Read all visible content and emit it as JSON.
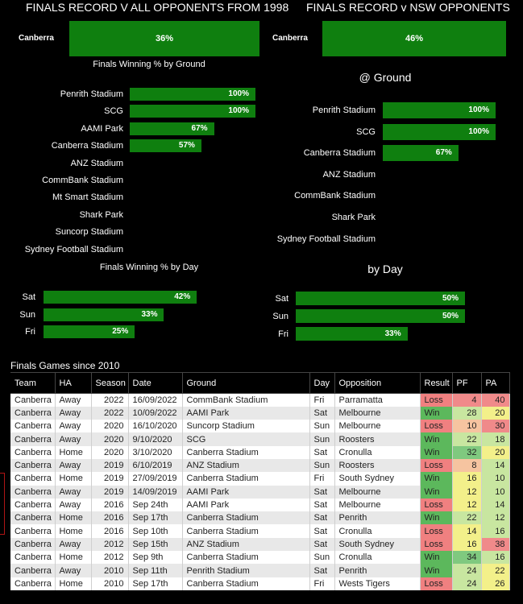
{
  "chart_data": [
    {
      "type": "bar",
      "title": "FINALS RECORD V ALL OPPONENTS FROM 1998",
      "categories": [
        "Canberra"
      ],
      "values": [
        36
      ],
      "value_format": "percent"
    },
    {
      "type": "bar",
      "title": "FINALS RECORD v NSW OPPONENTS",
      "categories": [
        "Canberra"
      ],
      "values": [
        46
      ],
      "value_format": "percent"
    },
    {
      "type": "bar",
      "orientation": "horizontal",
      "title": "Finals Winning % by Ground",
      "categories": [
        "Penrith Stadium",
        "SCG",
        "AAMI Park",
        "Canberra Stadium",
        "ANZ Stadium",
        "CommBank Stadium",
        "Mt Smart Stadium",
        "Shark Park",
        "Suncorp Stadium",
        "Sydney Football Stadium"
      ],
      "values": [
        100,
        100,
        67,
        57,
        0,
        0,
        0,
        0,
        0,
        0
      ],
      "xlim": [
        0,
        100
      ]
    },
    {
      "type": "bar",
      "orientation": "horizontal",
      "title": "@ Ground",
      "categories": [
        "Penrith Stadium",
        "SCG",
        "Canberra Stadium",
        "ANZ Stadium",
        "CommBank Stadium",
        "Shark Park",
        "Sydney Football Stadium"
      ],
      "values": [
        100,
        100,
        67,
        0,
        0,
        0,
        0
      ],
      "xlim": [
        0,
        100
      ]
    },
    {
      "type": "bar",
      "orientation": "horizontal",
      "title": "Finals Winning % by Day",
      "categories": [
        "Sat",
        "Sun",
        "Fri"
      ],
      "values": [
        42,
        33,
        25
      ],
      "xlim": [
        0,
        100
      ]
    },
    {
      "type": "bar",
      "orientation": "horizontal",
      "title": "by Day",
      "categories": [
        "Sat",
        "Sun",
        "Fri"
      ],
      "values": [
        50,
        50,
        33
      ],
      "xlim": [
        0,
        100
      ]
    },
    {
      "type": "table",
      "title": "Finals Games since 2010",
      "columns": [
        "Team",
        "HA",
        "Season",
        "Date",
        "Ground",
        "Day",
        "Opposition",
        "Result",
        "PF",
        "PA"
      ],
      "rows": [
        [
          "Canberra",
          "Away",
          "2022",
          "16/09/2022",
          "CommBank Stadium",
          "Fri",
          "Parramatta",
          "Loss",
          "4",
          "40"
        ],
        [
          "Canberra",
          "Away",
          "2022",
          "10/09/2022",
          "AAMI Park",
          "Sat",
          "Melbourne",
          "Win",
          "28",
          "20"
        ],
        [
          "Canberra",
          "Away",
          "2020",
          "16/10/2020",
          "Suncorp Stadium",
          "Sun",
          "Melbourne",
          "Loss",
          "10",
          "30"
        ],
        [
          "Canberra",
          "Away",
          "2020",
          "9/10/2020",
          "SCG",
          "Sun",
          "Roosters",
          "Win",
          "22",
          "18"
        ],
        [
          "Canberra",
          "Home",
          "2020",
          "3/10/2020",
          "Canberra Stadium",
          "Sat",
          "Cronulla",
          "Win",
          "32",
          "20"
        ],
        [
          "Canberra",
          "Away",
          "2019",
          "6/10/2019",
          "ANZ Stadium",
          "Sun",
          "Roosters",
          "Loss",
          "8",
          "14"
        ],
        [
          "Canberra",
          "Home",
          "2019",
          "27/09/2019",
          "Canberra Stadium",
          "Fri",
          "South Sydney",
          "Win",
          "16",
          "10"
        ],
        [
          "Canberra",
          "Away",
          "2019",
          "14/09/2019",
          "AAMI Park",
          "Sat",
          "Melbourne",
          "Win",
          "12",
          "10"
        ],
        [
          "Canberra",
          "Away",
          "2016",
          "Sep 24th",
          "AAMI Park",
          "Sat",
          "Melbourne",
          "Loss",
          "12",
          "14"
        ],
        [
          "Canberra",
          "Home",
          "2016",
          "Sep 17th",
          "Canberra Stadium",
          "Sat",
          "Penrith",
          "Win",
          "22",
          "12"
        ],
        [
          "Canberra",
          "Home",
          "2016",
          "Sep 10th",
          "Canberra Stadium",
          "Sat",
          "Cronulla",
          "Loss",
          "14",
          "16"
        ],
        [
          "Canberra",
          "Away",
          "2012",
          "Sep 15th",
          "ANZ Stadium",
          "Sat",
          "South Sydney",
          "Loss",
          "16",
          "38"
        ],
        [
          "Canberra",
          "Home",
          "2012",
          "Sep 9th",
          "Canberra Stadium",
          "Sun",
          "Cronulla",
          "Win",
          "34",
          "16"
        ],
        [
          "Canberra",
          "Away",
          "2010",
          "Sep 11th",
          "Penrith Stadium",
          "Sat",
          "Penrith",
          "Win",
          "24",
          "22"
        ],
        [
          "Canberra",
          "Home",
          "2010",
          "Sep 17th",
          "Canberra Stadium",
          "Fri",
          "Wests Tigers",
          "Loss",
          "24",
          "26"
        ]
      ]
    }
  ],
  "colors": {
    "bar": "#0f7f0f",
    "win": "#5cb85c",
    "loss": "#f08080"
  }
}
